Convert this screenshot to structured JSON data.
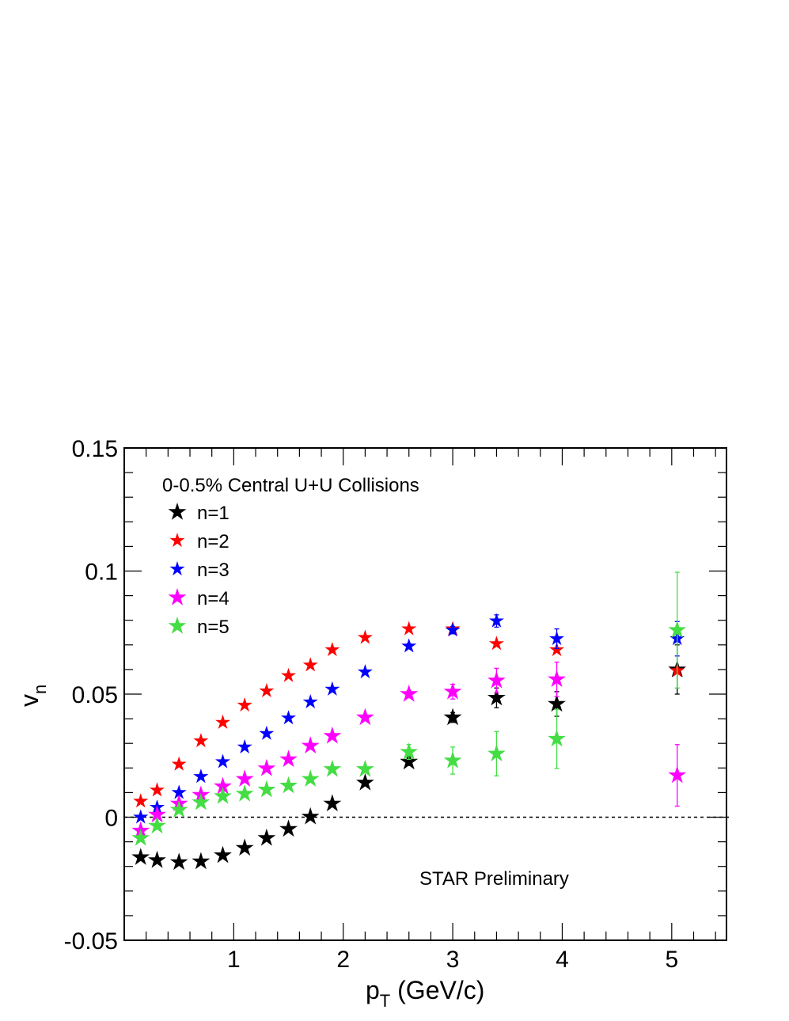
{
  "chart_data": {
    "type": "scatter",
    "title": "",
    "xlabel_main": "p",
    "xlabel_sub": "T",
    "xlabel_rest": " (GeV/c)",
    "ylabel_main": "v",
    "ylabel_sub": "n",
    "xlim": [
      0.0,
      5.5
    ],
    "ylim": [
      -0.05,
      0.15
    ],
    "x_ticks": [
      1,
      2,
      3,
      4,
      5
    ],
    "x_tick_labels": [
      "1",
      "2",
      "3",
      "4",
      "5"
    ],
    "y_ticks": [
      -0.05,
      0,
      0.05,
      0.1,
      0.15
    ],
    "y_tick_labels": [
      "-0.05",
      "0",
      "0.05",
      "0.1",
      "0.15"
    ],
    "grid": false,
    "reference_line_y": 0,
    "legend_title": "0-0.5% Central U+U Collisions",
    "legend_position": "top-left",
    "annotation": "STAR Preliminary",
    "x": [
      0.15,
      0.3,
      0.5,
      0.7,
      0.9,
      1.1,
      1.3,
      1.5,
      1.7,
      1.9,
      2.2,
      2.6,
      3.0,
      3.4,
      3.95,
      5.05
    ],
    "series": [
      {
        "name": "n=1",
        "color": "#000000",
        "size": "large",
        "values": [
          -0.0163,
          -0.0175,
          -0.0183,
          -0.018,
          -0.0155,
          -0.0125,
          -0.0085,
          -0.0048,
          0.0002,
          0.0055,
          0.014,
          0.0225,
          0.0405,
          0.0485,
          0.046,
          0.06
        ],
        "errors": [
          0,
          0,
          0,
          0,
          0,
          0,
          0,
          0,
          0,
          0.001,
          0.001,
          0.0015,
          0.002,
          0.004,
          0.005,
          0.01
        ]
      },
      {
        "name": "n=2",
        "color": "#ff0000",
        "size": "small",
        "values": [
          0.0065,
          0.011,
          0.0215,
          0.031,
          0.0385,
          0.0455,
          0.0513,
          0.0575,
          0.0618,
          0.068,
          0.073,
          0.0765,
          0.0765,
          0.0705,
          0.068,
          0.0595
        ],
        "errors": [
          0,
          0,
          0,
          0,
          0,
          0,
          0,
          0,
          0,
          0,
          0,
          0,
          0,
          0,
          0,
          0
        ]
      },
      {
        "name": "n=3",
        "color": "#0000ff",
        "size": "small",
        "values": [
          0.0,
          0.004,
          0.01,
          0.0165,
          0.0225,
          0.0285,
          0.034,
          0.0403,
          0.0468,
          0.052,
          0.059,
          0.0695,
          0.076,
          0.0797,
          0.0725,
          0.0725
        ],
        "errors": [
          0,
          0,
          0,
          0,
          0,
          0,
          0,
          0,
          0,
          0,
          0,
          0.001,
          0.0015,
          0.0025,
          0.004,
          0.007
        ]
      },
      {
        "name": "n=4",
        "color": "#ff00ff",
        "size": "large",
        "values": [
          -0.0055,
          0.001,
          0.0055,
          0.009,
          0.0125,
          0.0155,
          0.0198,
          0.0235,
          0.029,
          0.033,
          0.0405,
          0.05,
          0.051,
          0.0555,
          0.056,
          0.017
        ],
        "errors": [
          0,
          0,
          0,
          0,
          0,
          0,
          0,
          0,
          0,
          0,
          0.001,
          0.0015,
          0.003,
          0.005,
          0.007,
          0.0125
        ]
      },
      {
        "name": "n=5",
        "color": "#44dd44",
        "size": "large",
        "values": [
          -0.0085,
          -0.0035,
          0.003,
          0.006,
          0.0085,
          0.0095,
          0.0112,
          0.0128,
          0.0155,
          0.0195,
          0.0195,
          0.0265,
          0.023,
          0.0258,
          0.0318,
          0.076
        ],
        "errors": [
          0,
          0,
          0,
          0,
          0,
          0,
          0,
          0,
          0,
          0,
          0.001,
          0.003,
          0.0055,
          0.009,
          0.012,
          0.0235
        ]
      }
    ]
  }
}
